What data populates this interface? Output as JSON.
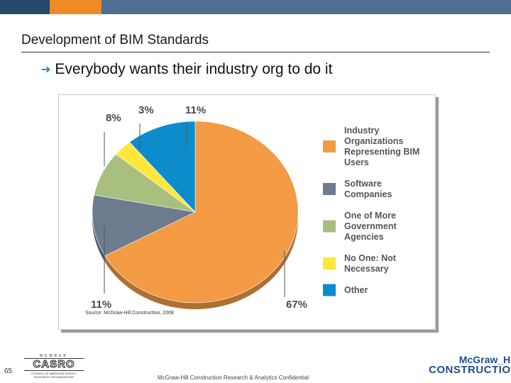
{
  "topbar": {
    "colors": [
      "#25496b",
      "#f08a24",
      "#4e6f92"
    ]
  },
  "slide": {
    "title": "Development of BIM Standards",
    "bullet": "Everybody wants their industry org to do it",
    "bullet_icon": "right-arrow-icon",
    "number": "65"
  },
  "chart_data": {
    "type": "pie",
    "slices": [
      {
        "label": "Industry Organizations Representing BIM Users",
        "value": 67,
        "percent_label": "67%",
        "color": "#f29a44"
      },
      {
        "label": "Software Companies",
        "value": 11,
        "percent_label": "11%",
        "color": "#6c7b8e"
      },
      {
        "label": "One of More Government Agencies",
        "value": 8,
        "percent_label": "8%",
        "color": "#a9bf7e"
      },
      {
        "label": "No One: Not Necessary",
        "value": 3,
        "percent_label": "3%",
        "color": "#ffe83a"
      },
      {
        "label": "Other",
        "value": 11,
        "percent_label": "11%",
        "color": "#0d8ccb"
      }
    ],
    "legend": {
      "placement": "right",
      "entries": [
        {
          "lines": [
            "Industry",
            "Organizations",
            "Representing BIM",
            "Users"
          ],
          "color": "#f29a44"
        },
        {
          "lines": [
            "Software",
            "Companies"
          ],
          "color": "#6c7b8e"
        },
        {
          "lines": [
            "One of More",
            "Government",
            "Agencies"
          ],
          "color": "#a9bf7e"
        },
        {
          "lines": [
            "No One: Not",
            "Necessary"
          ],
          "color": "#ffe83a"
        },
        {
          "lines": [
            "Other"
          ],
          "color": "#0d8ccb"
        }
      ]
    },
    "source": "Source: McGraw-Hill Construction, 2008"
  },
  "footer": {
    "confidential": "McGraw-Hill Construction Research & Analytics Confidential",
    "casro": {
      "top": "MEMBER",
      "word": "CASRO",
      "sub": "COUNCIL OF AMERICAN SURVEY RESEARCH ORGANIZATIONS"
    },
    "mh_line1": "McGraw_Hill",
    "mh_line2": "CONSTRUCTION"
  }
}
